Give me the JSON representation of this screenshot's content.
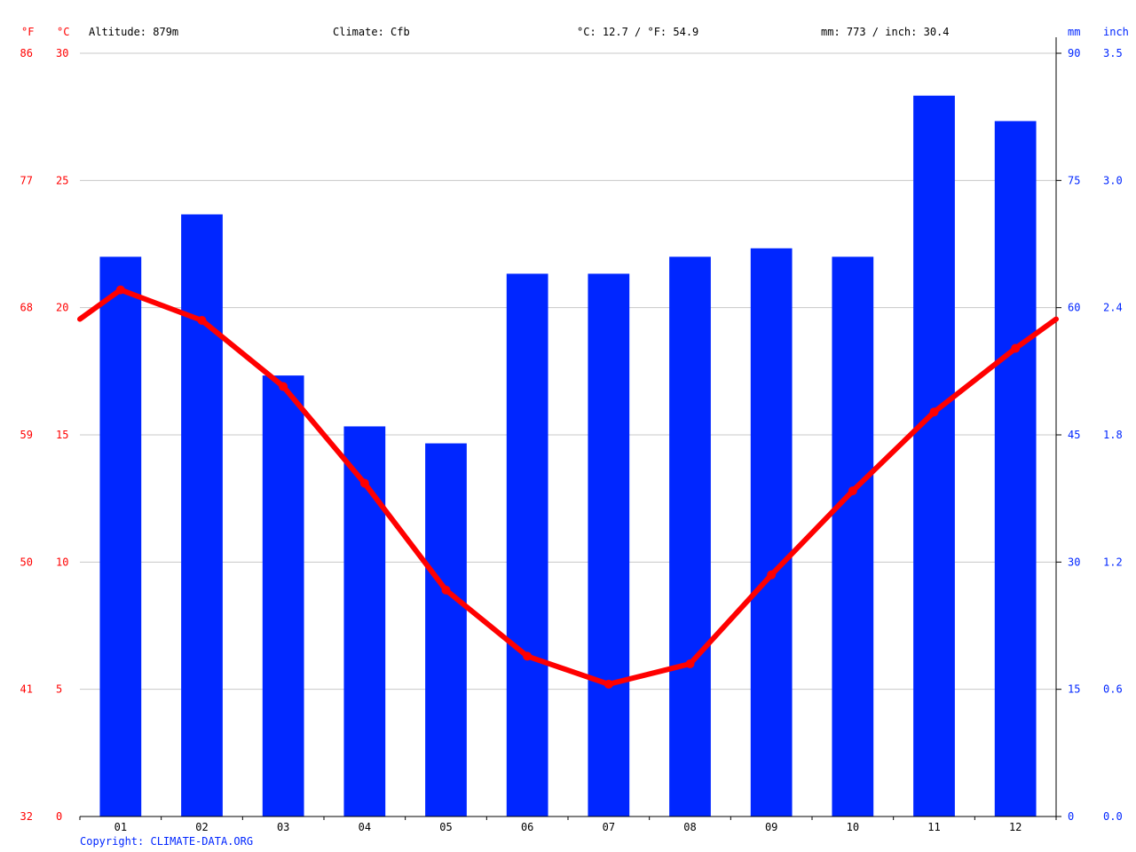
{
  "header": {
    "altitude": "Altitude: 879m",
    "climate": "Climate: Cfb",
    "temperature": "°C: 12.7 / °F: 54.9",
    "precipitation": "mm: 773 / inch: 30.4"
  },
  "copyright": "Copyright: CLIMATE-DATA.ORG",
  "colors": {
    "temperature": "#ff0000",
    "precipitation": "#0026ff",
    "grid": "#c8c8c8"
  },
  "chart_data": {
    "type": "bar",
    "categories": [
      "01",
      "02",
      "03",
      "04",
      "05",
      "06",
      "07",
      "08",
      "09",
      "10",
      "11",
      "12"
    ],
    "series": [
      {
        "type": "bar",
        "axis": "right",
        "values": [
          66,
          71,
          52,
          46,
          44,
          64,
          64,
          66,
          67,
          66,
          85,
          82
        ]
      },
      {
        "type": "line",
        "axis": "left",
        "values": [
          20.7,
          19.5,
          16.9,
          13.1,
          8.9,
          6.3,
          5.2,
          6.0,
          9.5,
          12.8,
          15.9,
          18.4
        ]
      }
    ],
    "y_left": {
      "unit_c": "°C",
      "unit_f": "°F",
      "range": [
        0,
        30
      ],
      "ticks_c": [
        "30",
        "25",
        "20",
        "15",
        "10",
        "5",
        "0"
      ],
      "ticks_f": [
        "86",
        "77",
        "68",
        "59",
        "50",
        "41",
        "32"
      ]
    },
    "y_right": {
      "unit_mm": "mm",
      "unit_inch": "inch",
      "range": [
        0,
        90
      ],
      "ticks_mm": [
        "90",
        "75",
        "60",
        "45",
        "30",
        "15",
        "0"
      ],
      "ticks_inch": [
        "3.5",
        "3.0",
        "2.4",
        "1.8",
        "1.2",
        "0.6",
        "0.0"
      ]
    },
    "grid": true
  }
}
